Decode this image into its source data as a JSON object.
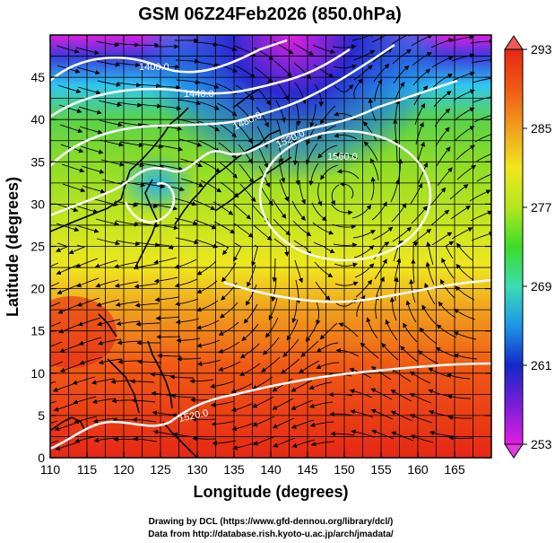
{
  "title": "GSM 06Z24Feb2026 (850.0hPa)",
  "xaxis": {
    "label": "Longitude (degrees)",
    "ticks": [
      "110",
      "115",
      "120",
      "125",
      "130",
      "135",
      "140",
      "145",
      "150",
      "155",
      "160",
      "165"
    ],
    "range": [
      110,
      170
    ]
  },
  "yaxis": {
    "label": "Latitude  (degrees)",
    "ticks": [
      "0",
      "5",
      "10",
      "15",
      "20",
      "25",
      "30",
      "35",
      "40",
      "45"
    ],
    "range": [
      0,
      50
    ]
  },
  "colorbar": {
    "ticks": [
      "293",
      "285",
      "277",
      "269",
      "261",
      "253"
    ],
    "range": [
      253,
      293
    ],
    "colors": [
      "#e01ee0",
      "#7a1ed8",
      "#1428c8",
      "#1e6ee6",
      "#28c8f0",
      "#3cdc8c",
      "#64dc28",
      "#b4e61e",
      "#f0e61e",
      "#f0a01e",
      "#f05a14",
      "#e62814"
    ]
  },
  "contours": {
    "labels": [
      "1400.0",
      "1440.0",
      "1480.0",
      "1520.0",
      "1560.0",
      "1520.0"
    ],
    "color": "#ffffff"
  },
  "credits": {
    "line1": "Drawing by DCL (https://www.gfd-dennou.org/library/dcl/)",
    "line2": "Data from http://database.rish.kyoto-u.ac.jp/arch/jmadata/"
  }
}
